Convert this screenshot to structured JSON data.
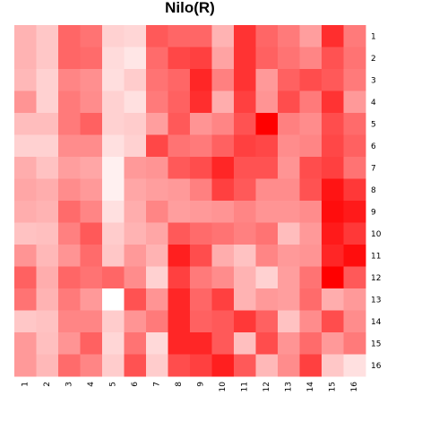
{
  "chart_data": {
    "type": "heatmap",
    "title": "Nilo(R)",
    "x_labels": [
      "1",
      "2",
      "3",
      "4",
      "5",
      "6",
      "7",
      "8",
      "9",
      "10",
      "11",
      "12",
      "13",
      "14",
      "15",
      "16"
    ],
    "y_labels": [
      "1",
      "2",
      "3",
      "4",
      "5",
      "6",
      "7",
      "8",
      "9",
      "10",
      "11",
      "12",
      "13",
      "14",
      "15",
      "16"
    ],
    "value_range": [
      0,
      1
    ],
    "color_low": "#ffffff",
    "color_high": "#ff0000",
    "values": [
      [
        0.3,
        0.22,
        0.6,
        0.55,
        0.18,
        0.16,
        0.65,
        0.6,
        0.6,
        0.3,
        0.8,
        0.6,
        0.52,
        0.38,
        0.82,
        0.52
      ],
      [
        0.3,
        0.22,
        0.6,
        0.58,
        0.14,
        0.1,
        0.58,
        0.72,
        0.75,
        0.36,
        0.8,
        0.62,
        0.55,
        0.48,
        0.68,
        0.55
      ],
      [
        0.28,
        0.18,
        0.48,
        0.44,
        0.13,
        0.2,
        0.55,
        0.6,
        0.85,
        0.5,
        0.8,
        0.4,
        0.62,
        0.7,
        0.65,
        0.52
      ],
      [
        0.42,
        0.18,
        0.52,
        0.45,
        0.18,
        0.12,
        0.52,
        0.62,
        0.82,
        0.32,
        0.75,
        0.42,
        0.7,
        0.52,
        0.8,
        0.4
      ],
      [
        0.26,
        0.26,
        0.52,
        0.62,
        0.18,
        0.2,
        0.38,
        0.65,
        0.42,
        0.48,
        0.68,
        1.0,
        0.5,
        0.45,
        0.7,
        0.58
      ],
      [
        0.18,
        0.18,
        0.45,
        0.45,
        0.12,
        0.18,
        0.72,
        0.55,
        0.52,
        0.62,
        0.75,
        0.72,
        0.45,
        0.48,
        0.72,
        0.62
      ],
      [
        0.32,
        0.24,
        0.38,
        0.35,
        0.06,
        0.4,
        0.42,
        0.65,
        0.7,
        0.85,
        0.68,
        0.68,
        0.42,
        0.7,
        0.75,
        0.55
      ],
      [
        0.35,
        0.32,
        0.45,
        0.4,
        0.06,
        0.35,
        0.38,
        0.4,
        0.5,
        0.75,
        0.65,
        0.45,
        0.45,
        0.68,
        0.92,
        0.78
      ],
      [
        0.32,
        0.3,
        0.58,
        0.48,
        0.12,
        0.32,
        0.48,
        0.38,
        0.4,
        0.42,
        0.48,
        0.42,
        0.42,
        0.45,
        0.95,
        0.9
      ],
      [
        0.24,
        0.25,
        0.5,
        0.65,
        0.2,
        0.3,
        0.35,
        0.65,
        0.58,
        0.55,
        0.5,
        0.55,
        0.26,
        0.4,
        0.9,
        0.78
      ],
      [
        0.42,
        0.28,
        0.42,
        0.58,
        0.22,
        0.4,
        0.3,
        0.88,
        0.7,
        0.32,
        0.24,
        0.48,
        0.4,
        0.42,
        0.85,
        0.95
      ],
      [
        0.62,
        0.32,
        0.6,
        0.55,
        0.6,
        0.45,
        0.18,
        0.75,
        0.52,
        0.45,
        0.3,
        0.18,
        0.38,
        0.55,
        1.0,
        0.65
      ],
      [
        0.55,
        0.3,
        0.52,
        0.4,
        0.0,
        0.68,
        0.42,
        0.85,
        0.6,
        0.75,
        0.3,
        0.4,
        0.38,
        0.58,
        0.32,
        0.4
      ],
      [
        0.22,
        0.24,
        0.48,
        0.48,
        0.2,
        0.42,
        0.52,
        0.85,
        0.62,
        0.65,
        0.78,
        0.62,
        0.24,
        0.45,
        0.7,
        0.45
      ],
      [
        0.4,
        0.25,
        0.42,
        0.62,
        0.16,
        0.55,
        0.15,
        0.85,
        0.85,
        0.65,
        0.25,
        0.7,
        0.42,
        0.58,
        0.4,
        0.52
      ],
      [
        0.4,
        0.28,
        0.58,
        0.48,
        0.2,
        0.68,
        0.2,
        0.7,
        0.75,
        0.88,
        0.65,
        0.28,
        0.45,
        0.75,
        0.22,
        0.12
      ]
    ]
  }
}
